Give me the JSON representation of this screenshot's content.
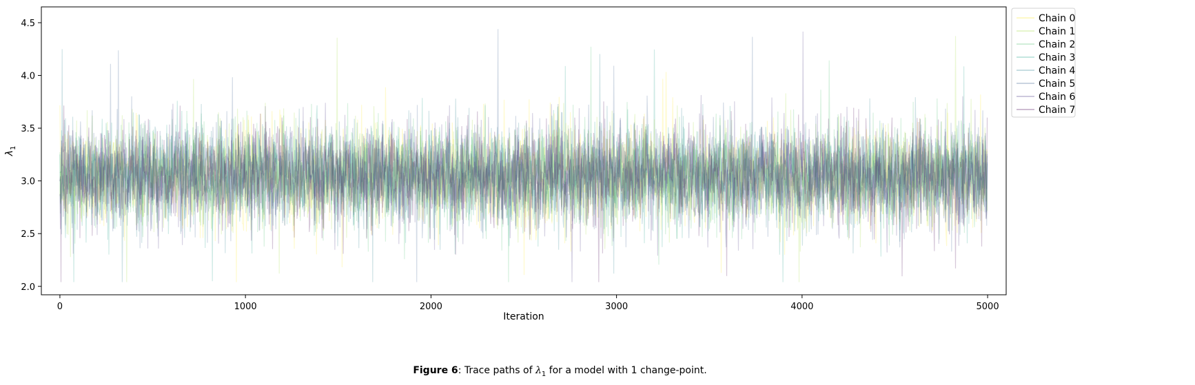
{
  "chart_data": {
    "type": "line",
    "title": "",
    "xlabel": "Iteration",
    "ylabel_symbol": "λ",
    "ylabel_subscript": "1",
    "xlim": [
      -100,
      5100
    ],
    "ylim": [
      1.92,
      4.65
    ],
    "x_ticks": [
      0,
      1000,
      2000,
      3000,
      4000,
      5000
    ],
    "x_tick_labels": [
      "0",
      "1000",
      "2000",
      "3000",
      "4000",
      "5000"
    ],
    "y_ticks": [
      2.0,
      2.5,
      3.0,
      3.5,
      4.0,
      4.5
    ],
    "y_tick_labels": [
      "2.0",
      "2.5",
      "3.0",
      "3.5",
      "4.0",
      "4.5"
    ],
    "grid": false,
    "legend_placement": "outside-top-right",
    "n_iterations": 5000,
    "series_summary": {
      "mean": 3.05,
      "sd": 0.24,
      "min": 2.04,
      "max": 4.56
    },
    "series": [
      {
        "name": "Chain 0",
        "color": "#fde725"
      },
      {
        "name": "Chain 1",
        "color": "#a0da39"
      },
      {
        "name": "Chain 2",
        "color": "#4ac16d"
      },
      {
        "name": "Chain 3",
        "color": "#1fa187"
      },
      {
        "name": "Chain 4",
        "color": "#277f8e"
      },
      {
        "name": "Chain 5",
        "color": "#365c8d"
      },
      {
        "name": "Chain 6",
        "color": "#46327e"
      },
      {
        "name": "Chain 7",
        "color": "#440154"
      }
    ]
  },
  "caption": {
    "label": "Figure 6",
    "text_before": ": Trace paths of ",
    "symbol": "λ",
    "subscript": "1",
    "text_after": " for a model with 1 change-point."
  }
}
